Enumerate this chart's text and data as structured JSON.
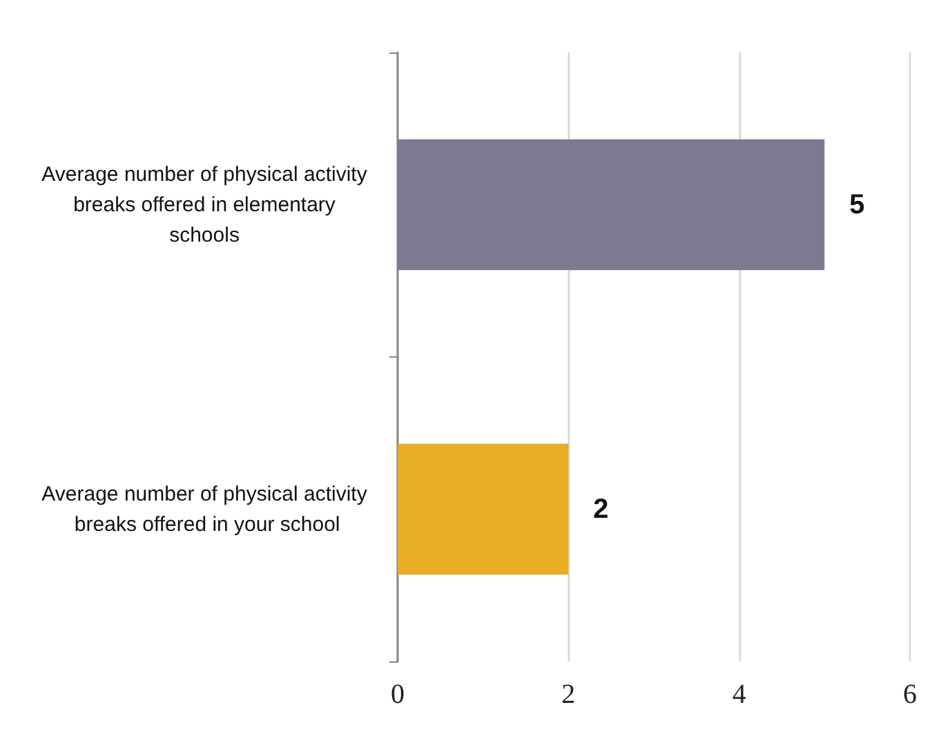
{
  "chart_data": {
    "type": "bar",
    "orientation": "horizontal",
    "categories": [
      "Average number of physical activity breaks offered in elementary schools",
      "Average number of physical activity breaks offered in your school"
    ],
    "values": [
      5,
      2
    ],
    "colors": [
      "#7f7891",
      "#e8ac25"
    ],
    "xlim": [
      0,
      6
    ],
    "xticks": [
      0,
      2,
      4,
      6
    ],
    "grid": "x",
    "data_labels": true
  }
}
